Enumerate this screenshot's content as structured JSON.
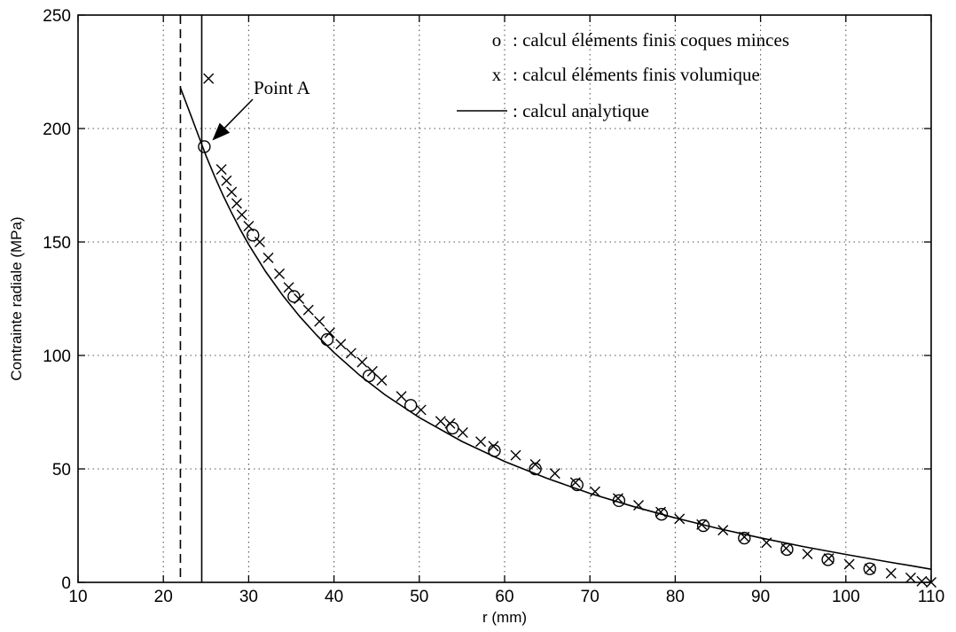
{
  "chart_data": {
    "type": "scatter",
    "xlabel": "r (mm)",
    "ylabel": "Contrainte radiale (MPa)",
    "xlim": [
      10,
      110
    ],
    "ylim": [
      0,
      250
    ],
    "xticks": [
      10,
      20,
      30,
      40,
      50,
      60,
      70,
      80,
      90,
      100,
      110
    ],
    "yticks": [
      0,
      50,
      100,
      150,
      200,
      250
    ],
    "grid": true,
    "legend_position": "top-right",
    "legend": [
      {
        "marker": "o",
        "label": ": calcul éléments finis coques minces"
      },
      {
        "marker": "x",
        "label": ": calcul éléments finis volumique"
      },
      {
        "marker": "line",
        "label": ": calcul analytique"
      }
    ],
    "vertical_lines": [
      {
        "x": 22,
        "style": "dashed"
      },
      {
        "x": 24.5,
        "style": "solid"
      }
    ],
    "annotation": {
      "text": "Point A",
      "x": 24.8,
      "y": 192
    },
    "series": [
      {
        "marker": "o",
        "x": [
          24.8,
          30.5,
          35.3,
          39.2,
          44.1,
          49.0,
          53.9,
          58.8,
          63.6,
          68.5,
          73.4,
          78.4,
          83.3,
          88.1,
          93.1,
          97.9,
          102.8
        ],
        "y": [
          192,
          153,
          126,
          107,
          91,
          78,
          68,
          58,
          50,
          43,
          36,
          30,
          25,
          19.5,
          14.5,
          10,
          6
        ]
      },
      {
        "marker": "x",
        "x": [
          25.3,
          26.8,
          27.4,
          28.0,
          28.6,
          29.2,
          30.0,
          31.3,
          32.3,
          33.6,
          34.7,
          35.9,
          37.0,
          38.3,
          39.5,
          40.8,
          42.0,
          43.3,
          44.5,
          45.6,
          47.9,
          50.2,
          52.5,
          53.6,
          55.1,
          57.2,
          58.7,
          61.3,
          63.6,
          65.9,
          68.3,
          70.6,
          73.3,
          75.7,
          78.3,
          80.5,
          83.1,
          85.6,
          88.1,
          90.7,
          93.0,
          95.5,
          98.0,
          100.4,
          102.8,
          105.3,
          107.6,
          108.9,
          110.0
        ],
        "y": [
          222,
          182,
          177,
          172,
          167,
          162,
          157,
          150,
          143,
          136,
          130,
          125,
          120,
          115,
          110,
          105,
          101,
          97,
          93,
          89,
          82,
          76,
          71,
          70,
          66,
          62,
          60,
          56,
          52,
          48,
          44,
          40,
          37,
          34,
          31,
          28,
          25.5,
          23,
          20,
          17.5,
          15,
          12.5,
          10.5,
          8,
          6,
          4,
          2,
          0.5,
          0
        ]
      },
      {
        "marker": "line",
        "x": [
          22.0,
          23.0,
          24.0,
          24.5,
          25.0,
          26.0,
          27.0,
          28.0,
          29.0,
          30.0,
          32.0,
          34.0,
          36.0,
          38.0,
          40.0,
          43.0,
          46.0,
          50.0,
          55.0,
          60.0,
          65.0,
          70.0,
          75.0,
          80.0,
          85.0,
          90.0,
          95.0,
          100.0,
          105.0,
          108.0,
          110.0
        ],
        "y": [
          218,
          208,
          198,
          193,
          188,
          179,
          170.6,
          162.8,
          155.6,
          148.9,
          136.9,
          126.4,
          117.1,
          108.8,
          101.3,
          91.3,
          82.6,
          72.6,
          62.1,
          53.3,
          45.8,
          39.2,
          33.5,
          28.4,
          23.8,
          19.6,
          15.8,
          12.3,
          9.0,
          7.1,
          5.8
        ]
      }
    ]
  }
}
